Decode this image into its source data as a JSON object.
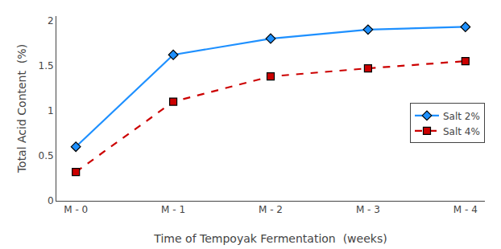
{
  "chart_data": {
    "type": "line",
    "categories": [
      "M - 0",
      "M - 1",
      "M - 2",
      "M - 3",
      "M - 4"
    ],
    "series": [
      {
        "name": "Salt 2%",
        "color": "#1E90FF",
        "marker": "diamond",
        "line_style": "solid",
        "values": [
          0.6,
          1.62,
          1.8,
          1.9,
          1.93
        ]
      },
      {
        "name": "Salt 4%",
        "color": "#CC0000",
        "marker": "square",
        "line_style": "dashed",
        "values": [
          0.32,
          1.1,
          1.38,
          1.47,
          1.55
        ]
      }
    ],
    "xlabel": "Time of Tempoyak Fermentation  (weeks)",
    "ylabel": "Total Acid Content  (%)",
    "ylim": [
      0,
      2.05
    ],
    "yticks": [
      0,
      0.5,
      1,
      1.5,
      2
    ],
    "grid": false,
    "legend": "right"
  }
}
